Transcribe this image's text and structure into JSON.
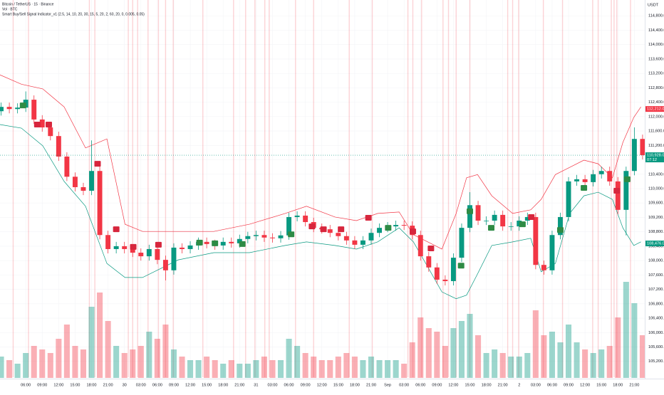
{
  "chart_data": {
    "type": "candlestick",
    "title": "Bitcoin / TetherUS · 15 · Binance",
    "indicators": [
      "Vol · BTC",
      "Smart Buy/Sell Signal Indicator_v1 (2.5, 14, 10, 20, 30, 15, 5, 20, 2, 60, 20, 0, 0.005, 0.05)"
    ],
    "y_axis_label": "USDT",
    "up_color": "#089981",
    "down_color": "#f23645",
    "x": [
      1.5,
      3,
      4.5,
      6,
      7.5,
      9,
      10.5,
      12,
      13.5,
      15,
      16.5,
      18,
      19.5,
      21,
      22.5,
      24,
      25.5,
      27,
      28.5,
      30,
      31.5,
      33,
      34.5,
      36,
      37.5,
      39,
      40.5,
      42,
      43.5,
      45,
      46.5,
      48,
      49.5,
      51,
      52.5,
      54,
      55.5,
      57,
      58.5,
      60,
      61.5,
      63,
      64.5,
      66,
      67.5,
      69,
      70.5,
      72,
      73.5,
      75,
      76.5,
      78,
      79.5,
      81,
      82.5,
      84,
      85.5,
      87,
      88.5,
      90,
      91.5,
      93,
      94.5,
      96,
      97.5,
      99,
      100.5,
      102,
      103.5,
      105,
      106.5,
      108,
      109.5,
      111,
      112.5,
      114,
      115.5,
      117,
      118.5
    ],
    "open": [
      112150,
      112270,
      112210,
      112250,
      112470,
      111920,
      111700,
      111460,
      110890,
      110330,
      110040,
      109940,
      110490,
      108710,
      108320,
      108400,
      108320,
      108220,
      108120,
      108320,
      108020,
      107730,
      108360,
      108320,
      108420,
      108520,
      108460,
      108420,
      108520,
      108480,
      108600,
      108680,
      108710,
      108640,
      108620,
      108700,
      109210,
      109250,
      109070,
      108910,
      108870,
      108770,
      108680,
      108560,
      108440,
      108560,
      108770,
      108910,
      108950,
      108990,
      108970,
      108710,
      108120,
      107810,
      107470,
      107430,
      108080,
      108910,
      109540,
      109110,
      109110,
      109270,
      108950,
      108950,
      109110,
      109210,
      107880,
      107730,
      108710,
      109210,
      110200,
      110260,
      110180,
      110400,
      110490,
      110200,
      109410,
      110490,
      111380
    ],
    "high": [
      112390,
      112390,
      112370,
      112700,
      112590,
      112040,
      111820,
      111580,
      111010,
      110450,
      110160,
      111340,
      110610,
      108830,
      108520,
      108520,
      108440,
      108340,
      108440,
      108440,
      108140,
      108480,
      108480,
      108540,
      108640,
      108640,
      108580,
      108640,
      108640,
      108720,
      108800,
      108830,
      108830,
      108760,
      108820,
      109330,
      109370,
      109370,
      109190,
      109030,
      108990,
      108890,
      108800,
      108680,
      108680,
      108890,
      109030,
      109070,
      109110,
      109110,
      109090,
      108830,
      108240,
      107930,
      107590,
      108200,
      109030,
      109900,
      109660,
      109230,
      109390,
      109390,
      109070,
      109230,
      109330,
      109330,
      108000,
      108830,
      109330,
      110320,
      110380,
      110380,
      110520,
      110610,
      110610,
      110320,
      110610,
      111700,
      111500
    ],
    "low": [
      112030,
      112090,
      112090,
      112130,
      111800,
      111580,
      111340,
      110770,
      110210,
      109920,
      109820,
      109820,
      108590,
      108200,
      108200,
      108200,
      108100,
      108000,
      108000,
      107900,
      107450,
      107610,
      108200,
      108200,
      108300,
      108340,
      108300,
      108300,
      108360,
      108360,
      108480,
      108560,
      108520,
      108500,
      108500,
      108580,
      109090,
      108950,
      108790,
      108750,
      108650,
      108560,
      108440,
      108320,
      108320,
      108440,
      108650,
      108790,
      108830,
      108850,
      108590,
      108000,
      107690,
      107350,
      107310,
      107310,
      107960,
      108790,
      108990,
      108990,
      108990,
      108830,
      108830,
      108830,
      108990,
      107760,
      107610,
      107610,
      108590,
      109090,
      110080,
      110060,
      110060,
      110280,
      110080,
      109290,
      108700,
      110370,
      110810
    ],
    "close": [
      112270,
      112210,
      112250,
      112470,
      111920,
      111700,
      111460,
      110890,
      110330,
      110040,
      109940,
      110490,
      108710,
      108320,
      108400,
      108320,
      108220,
      108120,
      108320,
      108020,
      107730,
      108360,
      108320,
      108420,
      108520,
      108460,
      108420,
      108520,
      108480,
      108600,
      108680,
      108710,
      108640,
      108620,
      108700,
      109210,
      109250,
      109070,
      108910,
      108870,
      108770,
      108680,
      108560,
      108440,
      108560,
      108770,
      108910,
      108950,
      108990,
      108970,
      108710,
      108120,
      107810,
      107470,
      107430,
      108080,
      108910,
      109540,
      109110,
      109110,
      109270,
      108950,
      108950,
      109110,
      109210,
      107880,
      107730,
      108710,
      109210,
      110200,
      110260,
      110180,
      110400,
      110490,
      110200,
      109410,
      110490,
      111380,
      110930
    ],
    "volume": [
      600,
      500,
      400,
      700,
      900,
      800,
      700,
      1100,
      1500,
      900,
      800,
      2000,
      2400,
      1600,
      900,
      700,
      800,
      900,
      1300,
      1100,
      1500,
      800,
      600,
      500,
      500,
      600,
      500,
      400,
      500,
      400,
      400,
      500,
      600,
      500,
      500,
      1100,
      900,
      700,
      600,
      500,
      500,
      600,
      700,
      600,
      500,
      600,
      500,
      500,
      500,
      400,
      1000,
      1700,
      1400,
      1300,
      900,
      1400,
      1600,
      1800,
      1200,
      700,
      800,
      700,
      600,
      600,
      700,
      1900,
      1200,
      1300,
      1000,
      1500,
      1000,
      800,
      700,
      800,
      900,
      1700,
      2700,
      2100,
      1200
    ],
    "volume_lim": [
      0,
      3000
    ],
    "bands": {
      "x": [
        1.3,
        5.2,
        9.1,
        13.0,
        16.9,
        20.8,
        24.1,
        27.3,
        33.8,
        40.3,
        46.8,
        53.3,
        57.2,
        62.4,
        66.3,
        70.2,
        74.1,
        76.7,
        79.3,
        81.9,
        84.5,
        86.4,
        88.4,
        91.0,
        94.8,
        98.1,
        100.0,
        102.6,
        105.2,
        107.8,
        110.4,
        113.0,
        114.9,
        116.9,
        118.2
      ],
      "upper": [
        113160,
        112900,
        112770,
        112270,
        111130,
        111380,
        109010,
        108810,
        108810,
        108810,
        109010,
        109310,
        109510,
        109210,
        109110,
        109310,
        109350,
        108720,
        108520,
        108320,
        109310,
        110300,
        110390,
        109800,
        109310,
        109410,
        109700,
        110390,
        110590,
        110790,
        110690,
        110300,
        111280,
        111980,
        112270
      ],
      "lower": [
        111780,
        111680,
        111190,
        110200,
        109510,
        107920,
        107530,
        107530,
        108020,
        108220,
        108220,
        108420,
        108520,
        108420,
        108320,
        108520,
        108910,
        108520,
        107830,
        107130,
        106940,
        107040,
        107630,
        108420,
        108520,
        108620,
        107690,
        107920,
        109310,
        109800,
        109900,
        109700,
        108910,
        108420,
        108520
      ],
      "upper_color": "#f23645",
      "lower_color": "#089981"
    },
    "sell_signals": {
      "x": [
        8.1,
        10.2,
        19.1,
        22.5,
        25.6,
        30.2,
        58.2,
        60.3,
        63.5,
        68.5,
        76.6,
        79.9,
        98.2,
        113.8
      ],
      "y": [
        111780,
        111780,
        110690,
        108870,
        108380,
        108440,
        108950,
        108870,
        108870,
        109190,
        108810,
        108340,
        109210,
        109940
      ],
      "color": "#d7263d"
    },
    "buy_signals": {
      "x": [
        5.5,
        37.7,
        40.5,
        45.5,
        54.4,
        72.1,
        85.4,
        87.0,
        90.9,
        96.6,
        103.5,
        107.8,
        115.7
      ],
      "y": [
        112310,
        108500,
        108480,
        108460,
        108730,
        108910,
        107860,
        109370,
        108910,
        109010,
        108850,
        110020,
        110260
      ],
      "color": "#2e8b45"
    },
    "highlights": {
      "x": [
        3.7,
        6.5,
        17.6,
        18.6,
        24.7,
        25.5,
        26.4,
        28.3,
        30.2,
        31.5,
        32.9,
        38.3,
        43.9,
        46.1,
        47.8,
        49.6,
        50.4,
        55.2,
        58.5,
        65.0,
        69.2,
        75.7,
        76.6,
        78.2,
        82.1,
        83.1,
        84.5,
        87.0,
        93.9,
        94.8,
        95.9,
        100.4,
        103.9,
        109.4,
        110.4,
        112.8,
        113.3,
        113.8,
        116.3
      ],
      "color": "rgba(242,54,69,0.22)"
    },
    "price_labels": [
      {
        "value": 112212,
        "label": "112,212.00",
        "color": "#f23645"
      },
      {
        "value": 110928,
        "label": "110,928.00",
        "color": "#089981"
      },
      {
        "value": 108476,
        "label": "108,476.00",
        "color": "#089981"
      }
    ],
    "countdown": "07:12",
    "xlim": [
      1.3,
      118.9
    ],
    "ylim": [
      104760,
      115240
    ],
    "xticks": [
      {
        "value": 6,
        "label": "06:00"
      },
      {
        "value": 9,
        "label": "09:00"
      },
      {
        "value": 12,
        "label": "12:00"
      },
      {
        "value": 15,
        "label": "15:00"
      },
      {
        "value": 18,
        "label": "18:00"
      },
      {
        "value": 21,
        "label": "21:00"
      },
      {
        "value": 24,
        "label": "30"
      },
      {
        "value": 27,
        "label": "03:00"
      },
      {
        "value": 30,
        "label": "06:00"
      },
      {
        "value": 33,
        "label": "09:00"
      },
      {
        "value": 36,
        "label": "12:00"
      },
      {
        "value": 39,
        "label": "15:00"
      },
      {
        "value": 42,
        "label": "18:00"
      },
      {
        "value": 45,
        "label": "21:00"
      },
      {
        "value": 48,
        "label": "31"
      },
      {
        "value": 51,
        "label": "03:00"
      },
      {
        "value": 54,
        "label": "06:00"
      },
      {
        "value": 57,
        "label": "09:00"
      },
      {
        "value": 60,
        "label": "12:00"
      },
      {
        "value": 63,
        "label": "15:00"
      },
      {
        "value": 66,
        "label": "18:00"
      },
      {
        "value": 69,
        "label": "21:00"
      },
      {
        "value": 72,
        "label": "Sep"
      },
      {
        "value": 75,
        "label": "03:00"
      },
      {
        "value": 78,
        "label": "06:00"
      },
      {
        "value": 81,
        "label": "09:00"
      },
      {
        "value": 84,
        "label": "12:00"
      },
      {
        "value": 87,
        "label": "15:00"
      },
      {
        "value": 90,
        "label": "18:00"
      },
      {
        "value": 93,
        "label": "21:00"
      },
      {
        "value": 96,
        "label": "2"
      },
      {
        "value": 99,
        "label": "03:00"
      },
      {
        "value": 102,
        "label": "06:00"
      },
      {
        "value": 105,
        "label": "09:00"
      },
      {
        "value": 108,
        "label": "12:00"
      },
      {
        "value": 111,
        "label": "15:00"
      },
      {
        "value": 114,
        "label": "18:00"
      },
      {
        "value": 117,
        "label": "21:00"
      }
    ],
    "yticks": [
      {
        "value": 105200,
        "label": "105,200.00"
      },
      {
        "value": 105600,
        "label": "105,600.00"
      },
      {
        "value": 106000,
        "label": "106,000.00"
      },
      {
        "value": 106400,
        "label": "106,400.00"
      },
      {
        "value": 106800,
        "label": "106,800.00"
      },
      {
        "value": 107200,
        "label": "107,200.00"
      },
      {
        "value": 107600,
        "label": "107,600.00"
      },
      {
        "value": 108000,
        "label": "108,000.00"
      },
      {
        "value": 108400,
        "label": "108,400.00"
      },
      {
        "value": 108800,
        "label": "108,800.00"
      },
      {
        "value": 109200,
        "label": "109,200.00"
      },
      {
        "value": 109600,
        "label": "109,600.00"
      },
      {
        "value": 110000,
        "label": "110,000.00"
      },
      {
        "value": 110400,
        "label": "110,400.00"
      },
      {
        "value": 110800,
        "label": "110,800.00"
      },
      {
        "value": 111200,
        "label": "111,200.00"
      },
      {
        "value": 111600,
        "label": "111,600.00"
      },
      {
        "value": 112000,
        "label": "112,000.00"
      },
      {
        "value": 112400,
        "label": "112,400.00"
      },
      {
        "value": 112800,
        "label": "112,800.00"
      },
      {
        "value": 113200,
        "label": "113,200.00"
      },
      {
        "value": 113600,
        "label": "113,600.00"
      },
      {
        "value": 114000,
        "label": "114,000.00"
      },
      {
        "value": 114400,
        "label": "114,400.00"
      },
      {
        "value": 114800,
        "label": "114,800.00"
      }
    ]
  }
}
